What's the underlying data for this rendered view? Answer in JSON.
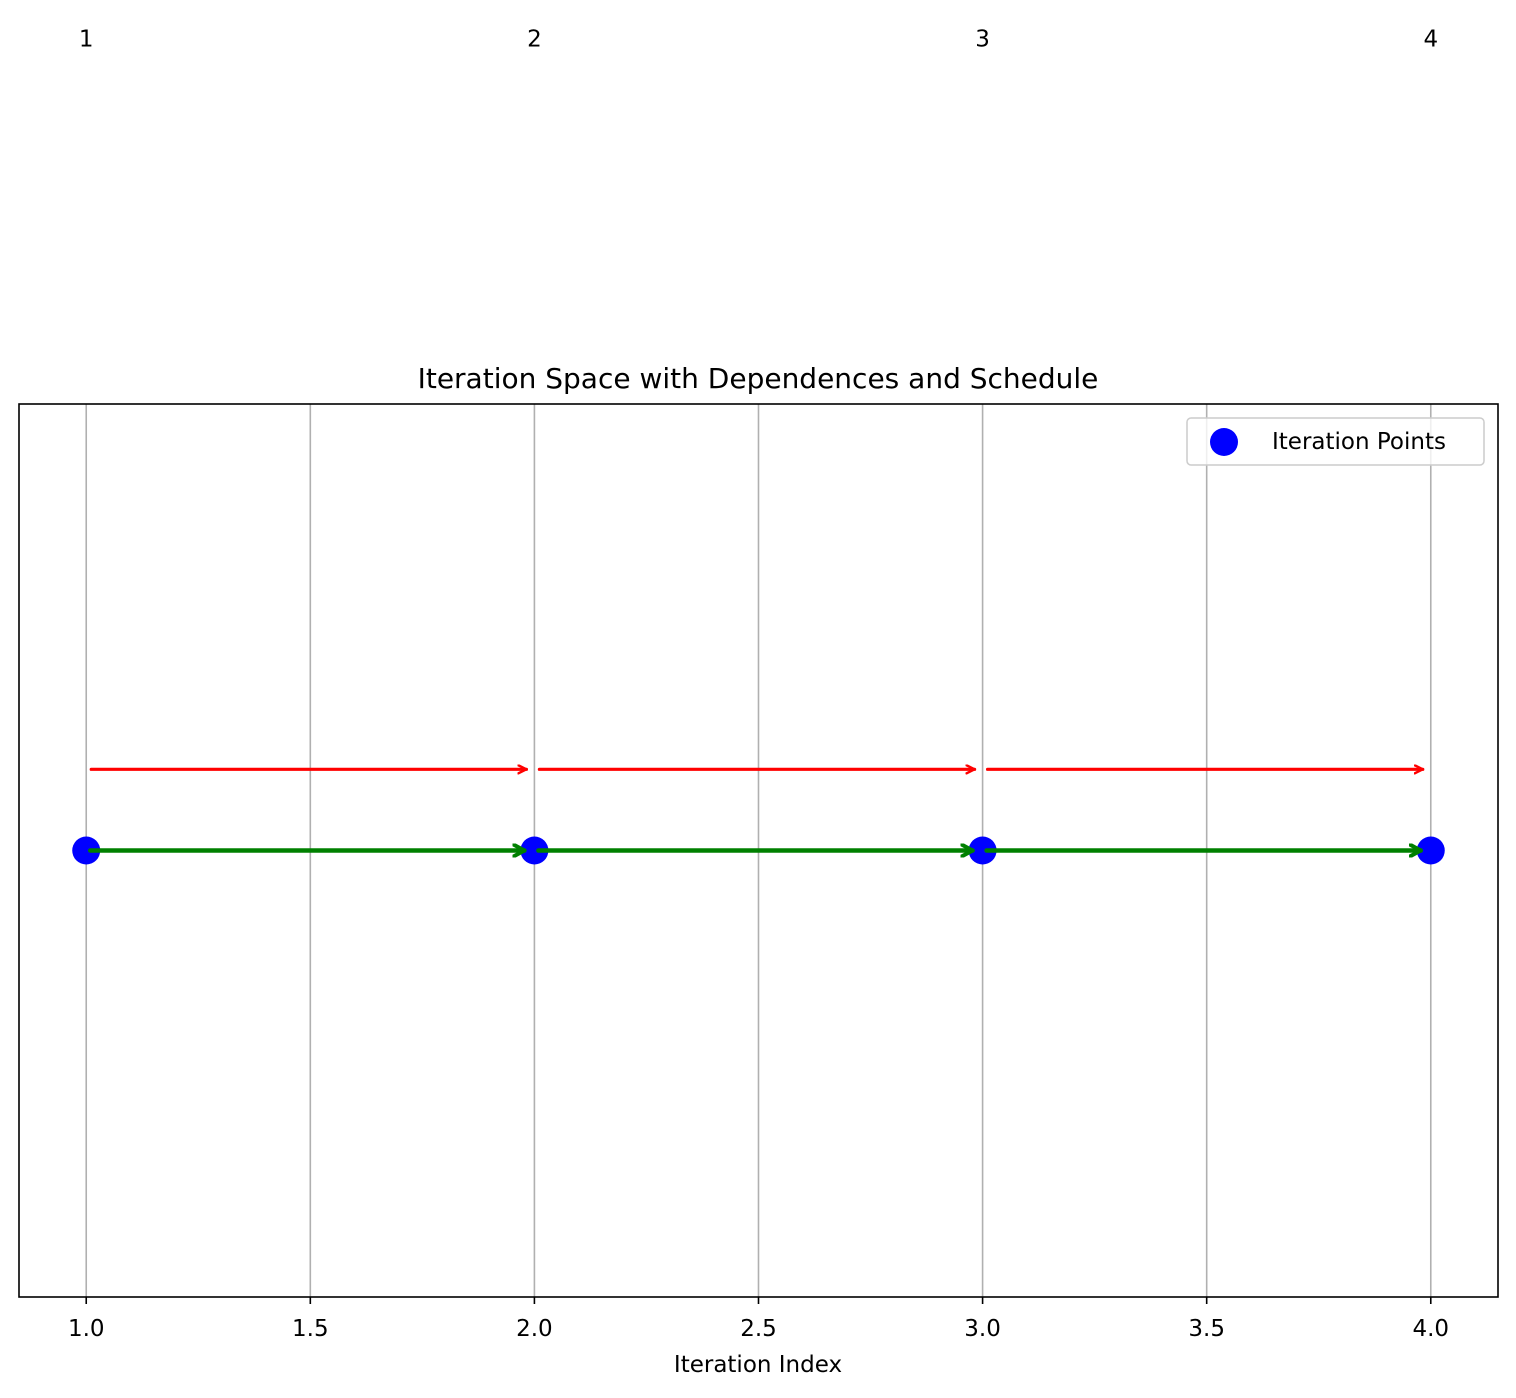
{
  "chart_data": {
    "type": "scatter",
    "title": "Iteration Space with Dependences and Schedule",
    "xlabel": "Iteration Index",
    "ylabel": "",
    "xlim": [
      0.85,
      4.15
    ],
    "ylim": [
      -0.055,
      0.055
    ],
    "grid": "vertical",
    "legend_position": "top-right",
    "x_ticks": [
      1.0,
      1.5,
      2.0,
      2.5,
      3.0,
      3.5,
      4.0
    ],
    "x_tick_labels": [
      "1.0",
      "1.5",
      "2.0",
      "2.5",
      "3.0",
      "3.5",
      "4.0"
    ],
    "series": [
      {
        "name": "Iteration Points",
        "color": "#0000ff",
        "x": [
          1,
          2,
          3,
          4
        ],
        "y": [
          0,
          0,
          0,
          0
        ]
      }
    ],
    "point_labels": [
      {
        "x": 1,
        "y": 0.1,
        "text": "1"
      },
      {
        "x": 2,
        "y": 0.1,
        "text": "2"
      },
      {
        "x": 3,
        "y": 0.1,
        "text": "3"
      },
      {
        "x": 4,
        "y": 0.1,
        "text": "4"
      }
    ],
    "dependence_arrows": {
      "color": "#ff0000",
      "items": [
        {
          "x_from": 1,
          "x_to": 2,
          "y": 0.01
        },
        {
          "x_from": 2,
          "x_to": 3,
          "y": 0.01
        },
        {
          "x_from": 3,
          "x_to": 4,
          "y": 0.01
        }
      ]
    },
    "schedule_arrows": {
      "color": "#008000",
      "items": [
        {
          "x_from": 1,
          "x_to": 2,
          "y": 0
        },
        {
          "x_from": 2,
          "x_to": 3,
          "y": 0
        },
        {
          "x_from": 3,
          "x_to": 4,
          "y": 0
        }
      ]
    }
  }
}
